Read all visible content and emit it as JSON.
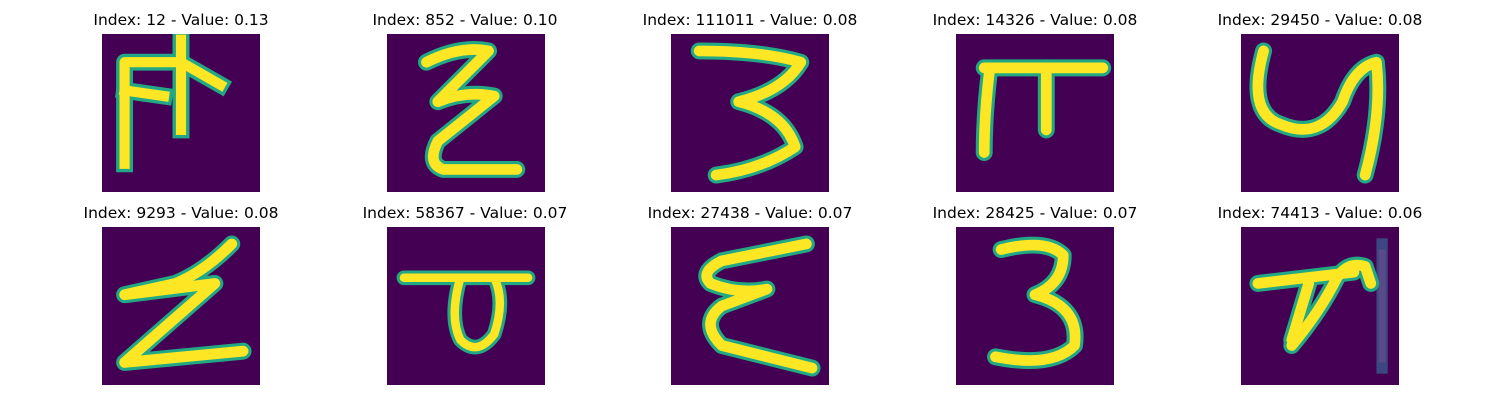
{
  "panels": [
    {
      "title": "Index: 12 - Value: 0.13",
      "glyph": "glyph-12"
    },
    {
      "title": "Index: 852 - Value: 0.10",
      "glyph": "glyph-852"
    },
    {
      "title": "Index: 111011 - Value: 0.08",
      "glyph": "glyph-111011"
    },
    {
      "title": "Index: 14326 - Value: 0.08",
      "glyph": "glyph-14326"
    },
    {
      "title": "Index: 29450 - Value: 0.08",
      "glyph": "glyph-29450"
    },
    {
      "title": "Index: 9293 - Value: 0.08",
      "glyph": "glyph-9293"
    },
    {
      "title": "Index: 58367 - Value: 0.07",
      "glyph": "glyph-58367"
    },
    {
      "title": "Index: 27438 - Value: 0.07",
      "glyph": "glyph-27438"
    },
    {
      "title": "Index: 28425 - Value: 0.07",
      "glyph": "glyph-28425"
    },
    {
      "title": "Index: 74413 - Value: 0.06",
      "glyph": "glyph-74413"
    }
  ],
  "colors": {
    "background": "#440154",
    "stroke_core": "#fde725",
    "stroke_edge": "#22a884"
  }
}
